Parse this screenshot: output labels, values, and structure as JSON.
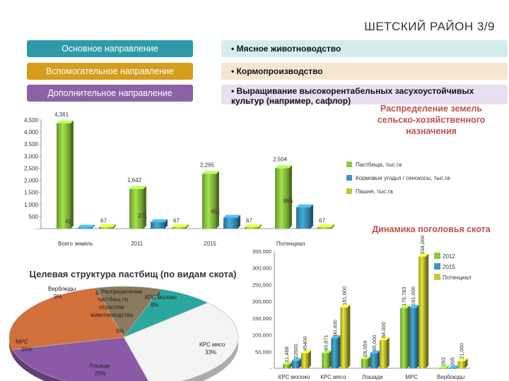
{
  "header": {
    "title": "ШЕТСКИЙ РАЙОН 3/9"
  },
  "directions": [
    {
      "label": "Основное направление",
      "value": "• Мясное животноводство",
      "label_color": "#2e9aa8",
      "value_color": "#d5ecef"
    },
    {
      "label": "Вспомогательное направление",
      "value": "• Кормопроизводство",
      "label_color": "#d69c1c",
      "value_color": "#f5e7cf"
    },
    {
      "label": "Дополнительное направление",
      "value": "• Выращивание высокорентабельных засухоустойчивых культур (например, сафлор)",
      "label_color": "#8b62a8",
      "value_color": "#e9dff0"
    }
  ],
  "chart_data": [
    {
      "type": "bar",
      "title": "Распределение земель сельско-хозяйственного назначения",
      "categories": [
        "Всего земель",
        "2011",
        "2015",
        "Потенциал"
      ],
      "series": [
        {
          "name": "Пастбища, тыс.га",
          "color": "#8dc63f",
          "values": [
            4361,
            1642,
            2265,
            2504
          ]
        },
        {
          "name": "Кормовые угодья / сенокосы, тыс.га",
          "color": "#3a95bd",
          "values": [
            42,
            271,
            451,
            885
          ]
        },
        {
          "name": "Пашня, тыс.га",
          "color": "#b5c93a",
          "values": [
            67,
            67,
            67,
            67
          ]
        }
      ],
      "value_labels": [
        [
          "4,361",
          "1,642",
          "2,265",
          "2,504"
        ],
        [
          "42",
          "271",
          "451",
          "885"
        ],
        [
          "67",
          "67",
          "67",
          "67"
        ]
      ],
      "yticks": [
        "-",
        "500",
        "1,000",
        "1,500",
        "2,000",
        "2,500",
        "3,000",
        "3,500",
        "4,000",
        "4,500"
      ],
      "ylim": [
        0,
        4500
      ]
    },
    {
      "type": "bar",
      "title": "Динамика поголовья скота",
      "categories": [
        "КРС молоко",
        "КРС мясо",
        "Лошади",
        "МРС",
        "Верблюды"
      ],
      "series": [
        {
          "name": "2012",
          "color": "#8dc63f",
          "values": [
            11468,
            45871,
            28059,
            179783,
            263
          ]
        },
        {
          "name": "2015",
          "color": "#3a95bd",
          "values": [
            22600,
            90400,
            45000,
            181000,
            395
          ]
        },
        {
          "name": "Потенциал",
          "color": "#c8c92e",
          "values": [
            45400,
            181600,
            84000,
            334000,
            21000
          ]
        }
      ],
      "value_labels": [
        [
          "11,468",
          "45,871",
          "28,059",
          "179,783",
          "263"
        ],
        [
          "22600",
          "90,400",
          "45,000",
          "181,000",
          "395"
        ],
        [
          "45400",
          "181,600",
          "84,000",
          "334,000",
          "21,000"
        ]
      ],
      "yticks": [
        "-",
        "50,000",
        "100,000",
        "150,000",
        "200,000",
        "250,000",
        "300,000",
        "350,000"
      ],
      "ylim": [
        0,
        350000
      ]
    },
    {
      "type": "pie",
      "title": "Целевая структура пастбищ (по видам скота)",
      "center_text": "Распределение пастбищ по отраслям животноводства",
      "slices": [
        {
          "name": "КРС молоко",
          "value": 8,
          "label": "КРС молоко 8%",
          "color": "#2aa8a0"
        },
        {
          "name": "КРС мясо",
          "value": 33,
          "label": "КРС мясо 33%",
          "color": "#ffffff"
        },
        {
          "name": "Лошади",
          "value": 25,
          "label": "Лошади 25%",
          "color": "#8b5aa7"
        },
        {
          "name": "МРС",
          "value": 25,
          "label": "МРС 25%",
          "color": "#d2703c"
        },
        {
          "name": "Верблюды",
          "value": 9,
          "label": "Верблюды 9%",
          "color": "#8a7a5e"
        },
        {
          "name": "",
          "value": 0,
          "label": "0%",
          "color": "#888888"
        }
      ]
    }
  ]
}
